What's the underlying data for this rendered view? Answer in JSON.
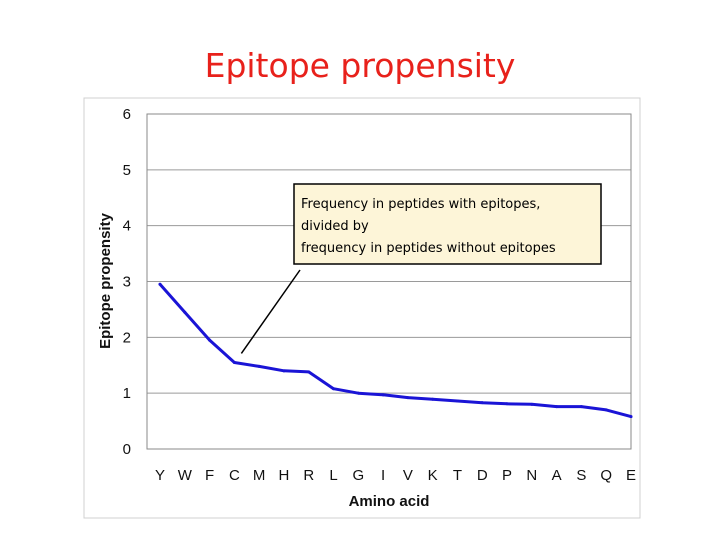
{
  "slide": {
    "title": "Epitope propensity"
  },
  "chart_data": {
    "type": "line",
    "title": "",
    "xlabel": "Amino acid",
    "ylabel": "Epitope propensity",
    "categories": [
      "Y",
      "W",
      "F",
      "C",
      "M",
      "H",
      "R",
      "L",
      "G",
      "I",
      "V",
      "K",
      "T",
      "D",
      "P",
      "N",
      "A",
      "S",
      "Q",
      "E"
    ],
    "yticks": [
      "0",
      "1",
      "2",
      "3",
      "4",
      "5",
      "6"
    ],
    "ylim": [
      0,
      6
    ],
    "grid": true,
    "series": [
      {
        "values": [
          2.95,
          2.45,
          1.95,
          1.55,
          1.48,
          1.4,
          1.38,
          1.08,
          1.0,
          0.97,
          0.92,
          0.89,
          0.86,
          0.83,
          0.81,
          0.8,
          0.76,
          0.76,
          0.7,
          0.58
        ],
        "color": "#1a14d6"
      }
    ],
    "annotation": {
      "lines": [
        "Frequency in peptides with epitopes,",
        "divided by",
        "frequency in peptides without epitopes"
      ],
      "points_to": "C",
      "box_fill": "#fdf5d8",
      "box_border": "#000000"
    }
  }
}
